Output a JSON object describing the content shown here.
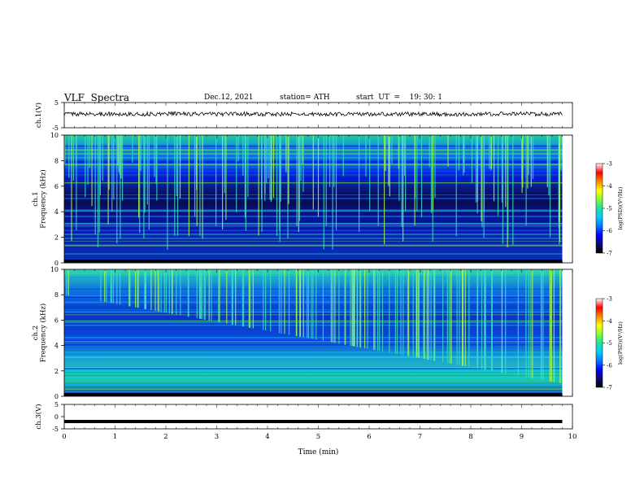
{
  "header": {
    "title": "VLF  Spectra",
    "date": "Dec.12, 2021",
    "station": "station= ATH",
    "start": "start  UT  =    19: 30: 1"
  },
  "chart_data": [
    {
      "type": "line",
      "id": "ch1-waveform",
      "ylabel": "ch.1(V)",
      "ylim": [
        -5,
        5
      ],
      "yticks": [
        5,
        -5
      ],
      "x_range_min": [
        0,
        9.8
      ],
      "x": [
        0,
        0.5,
        1,
        1.5,
        2,
        2.5,
        3,
        3.5,
        4,
        4.5,
        5,
        5.5,
        6,
        6.5,
        7,
        7.5,
        8,
        8.5,
        9,
        9.5,
        9.8
      ],
      "y": [
        0.6,
        0.4,
        0.5,
        0.3,
        0.6,
        0.5,
        0.4,
        0.5,
        0.3,
        0.4,
        0.3,
        0.5,
        0.4,
        0.4,
        0.5,
        0.3,
        0.4,
        0.5,
        0.6,
        0.4,
        0.5
      ],
      "color": "#000000"
    },
    {
      "type": "heatmap",
      "id": "ch1-spectrogram",
      "ylabel": "ch.1\nFrequency  (kHz)",
      "ylim": [
        0,
        10
      ],
      "yticks": [
        0,
        2,
        4,
        6,
        8,
        10
      ],
      "x_range_min": [
        0,
        9.8
      ],
      "colorbar": {
        "label": "log(PSD)(V²/Hz)",
        "range": [
          -7,
          -3
        ],
        "ticks": [
          "-3",
          "-4",
          "-5",
          "-6",
          "-7"
        ]
      }
    },
    {
      "type": "heatmap",
      "id": "ch2-spectrogram",
      "ylabel": "ch.2\nFrequency  (kHz)",
      "ylim": [
        0,
        10
      ],
      "yticks": [
        0,
        2,
        4,
        6,
        8,
        10
      ],
      "x_range_min": [
        0,
        9.8
      ],
      "colorbar": {
        "label": "log(PSD)(V²/Hz)",
        "range": [
          -7,
          -3
        ],
        "ticks": [
          "-3",
          "-4",
          "-5",
          "-6",
          "-7"
        ]
      }
    },
    {
      "type": "line",
      "id": "ch3-waveform",
      "ylabel": "ch.3(V)",
      "ylim": [
        -5,
        5
      ],
      "yticks": [
        5,
        0,
        -5
      ],
      "x_range_min": [
        0,
        9.8
      ],
      "x": [
        0,
        9.8
      ],
      "y": [
        -2,
        -2
      ],
      "color": "#000000"
    }
  ],
  "xaxis": {
    "label": "Time  (min)",
    "range": [
      0,
      10
    ],
    "ticks": [
      "0",
      "1",
      "2",
      "3",
      "4",
      "5",
      "6",
      "7",
      "8",
      "9",
      "10"
    ]
  },
  "colormap": [
    "#000000",
    "#0a0a6e",
    "#0000ff",
    "#0077ff",
    "#00ccff",
    "#20e0a0",
    "#80ff30",
    "#ffff00",
    "#ff8800",
    "#ff0000",
    "#ffffff"
  ]
}
